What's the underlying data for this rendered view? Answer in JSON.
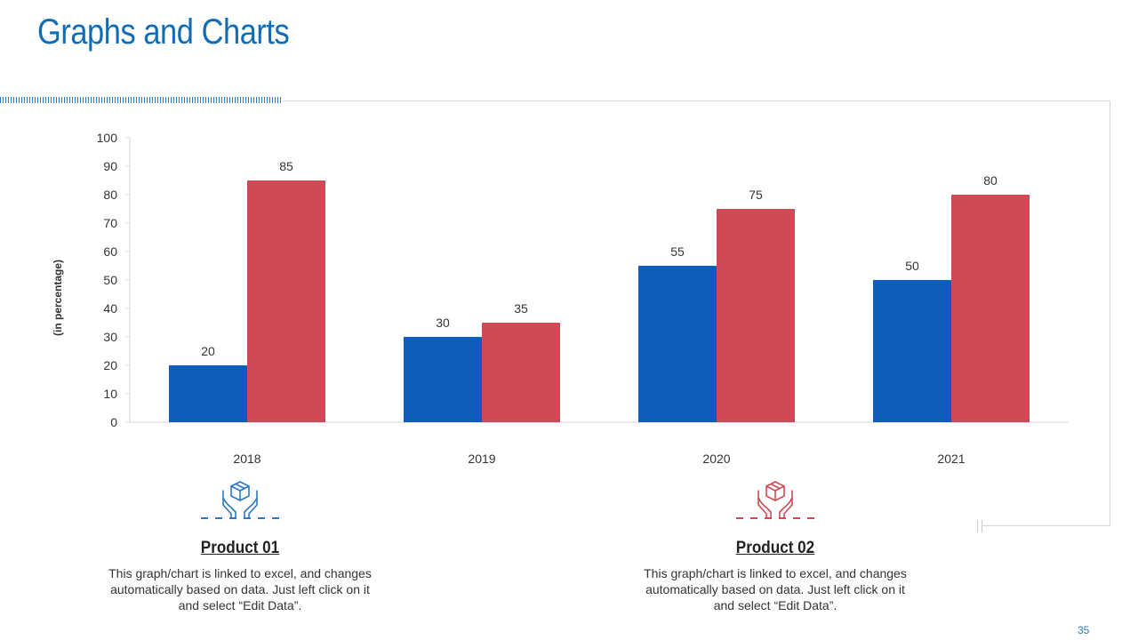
{
  "title": "Graphs and Charts",
  "page_number": "35",
  "colors": {
    "product01": "#0E5DBA",
    "product02": "#CF4A55",
    "title": "#0F6CB6"
  },
  "chart_data": {
    "type": "bar",
    "categories": [
      "2018",
      "2019",
      "2020",
      "2021"
    ],
    "series": [
      {
        "name": "Product 01",
        "values": [
          20,
          30,
          55,
          50
        ],
        "color": "#0E5DBA"
      },
      {
        "name": "Product 02",
        "values": [
          85,
          35,
          75,
          80
        ],
        "color": "#CF4A55"
      }
    ],
    "title": "",
    "xlabel": "",
    "ylabel": "(in percentage)",
    "ylim": [
      0,
      100
    ],
    "yticks": [
      0,
      10,
      20,
      30,
      40,
      50,
      60,
      70,
      80,
      90,
      100
    ],
    "grid": false,
    "legend": "none"
  },
  "products": [
    {
      "name": "Product 01",
      "icon": "hands-box-icon",
      "description": "This graph/chart is linked to excel, and changes automatically based on data. Just left click on it and select “Edit Data”."
    },
    {
      "name": "Product 02",
      "icon": "hands-box-icon",
      "description": "This graph/chart is linked to excel, and changes automatically based on data. Just left click on it and select “Edit Data”."
    }
  ]
}
